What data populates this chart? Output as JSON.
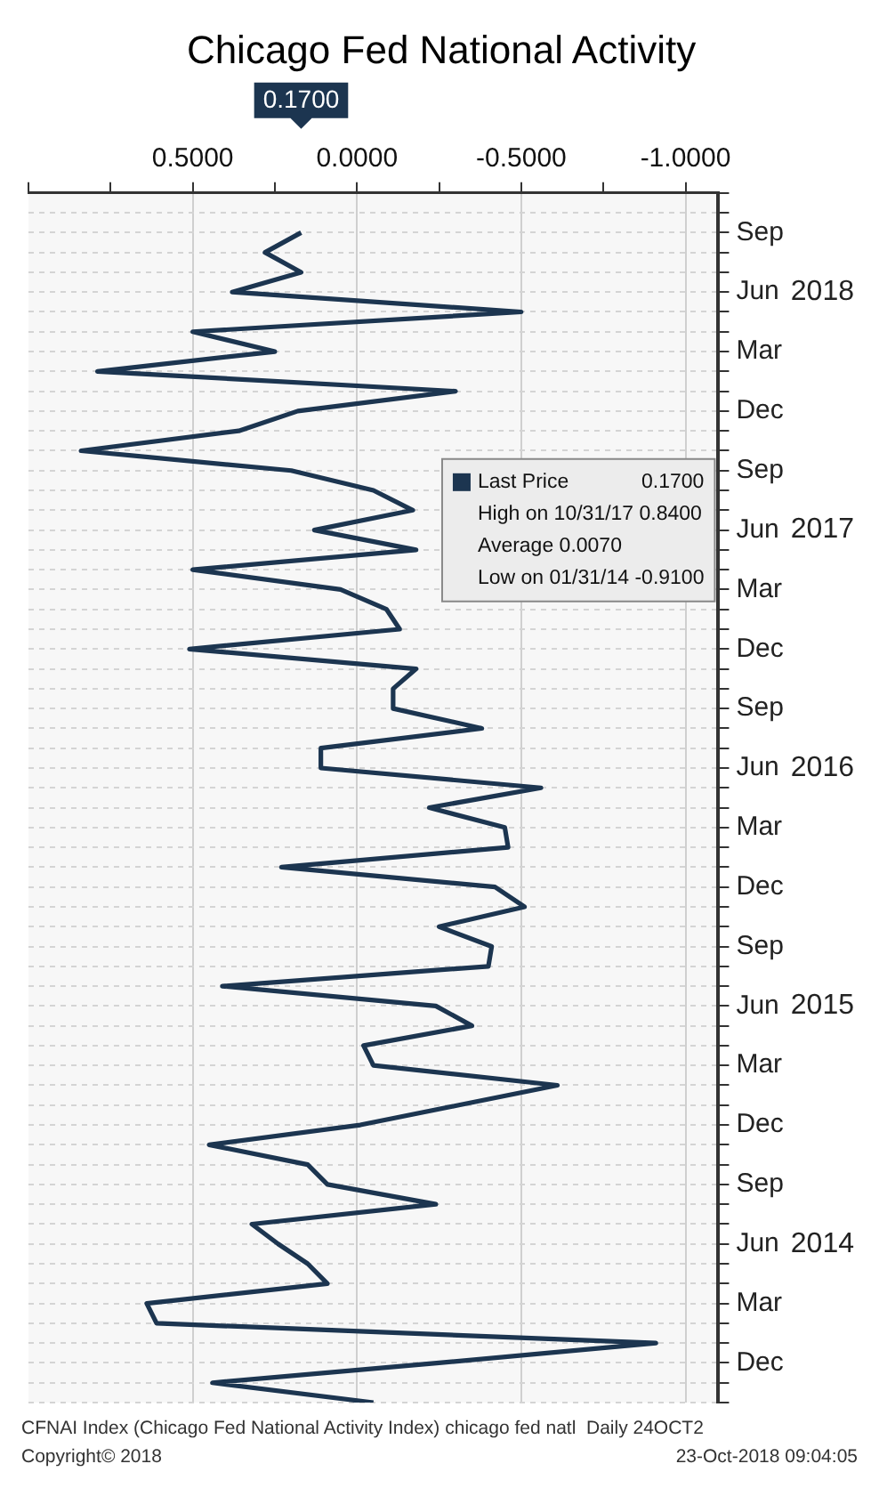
{
  "chart_data": {
    "type": "line",
    "title": "Chicago Fed National Activity",
    "orientation": "horizontal",
    "x": [
      "2013-10",
      "2013-11",
      "2013-12",
      "2014-01",
      "2014-02",
      "2014-03",
      "2014-04",
      "2014-05",
      "2014-06",
      "2014-07",
      "2014-08",
      "2014-09",
      "2014-10",
      "2014-11",
      "2014-12",
      "2015-01",
      "2015-02",
      "2015-03",
      "2015-04",
      "2015-05",
      "2015-06",
      "2015-07",
      "2015-08",
      "2015-09",
      "2015-10",
      "2015-11",
      "2015-12",
      "2016-01",
      "2016-02",
      "2016-03",
      "2016-04",
      "2016-05",
      "2016-06",
      "2016-07",
      "2016-08",
      "2016-09",
      "2016-10",
      "2016-11",
      "2016-12",
      "2017-01",
      "2017-02",
      "2017-03",
      "2017-04",
      "2017-05",
      "2017-06",
      "2017-07",
      "2017-08",
      "2017-09",
      "2017-10",
      "2017-11",
      "2017-12",
      "2018-01",
      "2018-02",
      "2018-03",
      "2018-04",
      "2018-05",
      "2018-06",
      "2018-07",
      "2018-08",
      "2018-09"
    ],
    "series": [
      {
        "name": "Last Price",
        "color": "#1c3550",
        "values": [
          -0.05,
          0.44,
          -0.25,
          -0.91,
          0.61,
          0.64,
          0.09,
          0.15,
          0.24,
          0.32,
          -0.24,
          0.09,
          0.15,
          0.45,
          -0.01,
          -0.31,
          -0.61,
          -0.05,
          -0.02,
          -0.35,
          -0.24,
          0.41,
          -0.4,
          -0.41,
          -0.25,
          -0.51,
          -0.42,
          0.23,
          -0.46,
          -0.45,
          -0.22,
          -0.56,
          0.11,
          0.11,
          -0.38,
          -0.11,
          -0.11,
          -0.18,
          0.51,
          -0.13,
          -0.09,
          0.05,
          0.5,
          -0.18,
          0.13,
          -0.17,
          -0.05,
          0.2,
          0.84,
          0.36,
          0.18,
          -0.3,
          0.79,
          0.25,
          0.5,
          -0.5,
          0.38,
          0.17,
          0.28,
          0.17
        ]
      }
    ],
    "xlim": [
      1.0,
      -1.1
    ],
    "xticks": [
      {
        "value": 1.0,
        "label": null
      },
      {
        "value": 0.75,
        "label": null
      },
      {
        "value": 0.5,
        "label": "0.5000"
      },
      {
        "value": 0.25,
        "label": null
      },
      {
        "value": 0,
        "label": "0.0000"
      },
      {
        "value": -0.25,
        "label": null
      },
      {
        "value": -0.5,
        "label": "-0.5000"
      },
      {
        "value": -0.75,
        "label": null
      },
      {
        "value": -1.0,
        "label": "-1.0000"
      }
    ],
    "ylim": [
      "2013-10",
      "2018-11"
    ],
    "yticks": [
      {
        "value": "2013-10",
        "label": null
      },
      {
        "value": "2013-11",
        "label": null
      },
      {
        "value": "2013-12",
        "label": "Dec"
      },
      {
        "value": "2014-01",
        "label": null
      },
      {
        "value": "2014-02",
        "label": null
      },
      {
        "value": "2014-03",
        "label": "Mar"
      },
      {
        "value": "2014-04",
        "label": null
      },
      {
        "value": "2014-05",
        "label": null
      },
      {
        "value": "2014-06",
        "label": "Jun"
      },
      {
        "value": "2014-07",
        "label": null
      },
      {
        "value": "2014-08",
        "label": null
      },
      {
        "value": "2014-09",
        "label": "Sep"
      },
      {
        "value": "2014-10",
        "label": null
      },
      {
        "value": "2014-11",
        "label": null
      },
      {
        "value": "2014-12",
        "label": "Dec"
      },
      {
        "value": "2015-01",
        "label": null
      },
      {
        "value": "2015-02",
        "label": null
      },
      {
        "value": "2015-03",
        "label": "Mar"
      },
      {
        "value": "2015-04",
        "label": null
      },
      {
        "value": "2015-05",
        "label": null
      },
      {
        "value": "2015-06",
        "label": "Jun"
      },
      {
        "value": "2015-07",
        "label": null
      },
      {
        "value": "2015-08",
        "label": null
      },
      {
        "value": "2015-09",
        "label": "Sep"
      },
      {
        "value": "2015-10",
        "label": null
      },
      {
        "value": "2015-11",
        "label": null
      },
      {
        "value": "2015-12",
        "label": "Dec"
      },
      {
        "value": "2016-01",
        "label": null
      },
      {
        "value": "2016-02",
        "label": null
      },
      {
        "value": "2016-03",
        "label": "Mar"
      },
      {
        "value": "2016-04",
        "label": null
      },
      {
        "value": "2016-05",
        "label": null
      },
      {
        "value": "2016-06",
        "label": "Jun"
      },
      {
        "value": "2016-07",
        "label": null
      },
      {
        "value": "2016-08",
        "label": null
      },
      {
        "value": "2016-09",
        "label": "Sep"
      },
      {
        "value": "2016-10",
        "label": null
      },
      {
        "value": "2016-11",
        "label": null
      },
      {
        "value": "2016-12",
        "label": "Dec"
      },
      {
        "value": "2017-01",
        "label": null
      },
      {
        "value": "2017-02",
        "label": null
      },
      {
        "value": "2017-03",
        "label": "Mar"
      },
      {
        "value": "2017-04",
        "label": null
      },
      {
        "value": "2017-05",
        "label": null
      },
      {
        "value": "2017-06",
        "label": "Jun"
      },
      {
        "value": "2017-07",
        "label": null
      },
      {
        "value": "2017-08",
        "label": null
      },
      {
        "value": "2017-09",
        "label": "Sep"
      },
      {
        "value": "2017-10",
        "label": null
      },
      {
        "value": "2017-11",
        "label": null
      },
      {
        "value": "2017-12",
        "label": "Dec"
      },
      {
        "value": "2018-01",
        "label": null
      },
      {
        "value": "2018-02",
        "label": null
      },
      {
        "value": "2018-03",
        "label": "Mar"
      },
      {
        "value": "2018-04",
        "label": null
      },
      {
        "value": "2018-05",
        "label": null
      },
      {
        "value": "2018-06",
        "label": "Jun"
      },
      {
        "value": "2018-07",
        "label": null
      },
      {
        "value": "2018-08",
        "label": null
      },
      {
        "value": "2018-09",
        "label": "Sep"
      },
      {
        "value": "2018-10",
        "label": null
      },
      {
        "value": "2018-11",
        "label": null
      }
    ],
    "y2lim": [
      "2013-10",
      "2018-11"
    ],
    "y2ticks": [
      {
        "value": "2014-06",
        "label": "2014"
      },
      {
        "value": "2015-06",
        "label": "2015"
      },
      {
        "value": "2016-06",
        "label": "2016"
      },
      {
        "value": "2017-06",
        "label": "2017"
      },
      {
        "value": "2018-06",
        "label": "2018"
      }
    ],
    "grid": true,
    "legend": "right",
    "marker": "none",
    "line_style": "solid",
    "annotations": [
      "0.1700",
      "High on 10/31/17 0.8400",
      "Average 0.0070",
      "Low on 01/31/14 -0.9100",
      "CFNAI Index (Chicago Fed National Activity Index) chicago fed natl  Daily 24OCT2",
      "Copyright© 2018",
      "23-Oct-2018 09:04:05"
    ]
  }
}
